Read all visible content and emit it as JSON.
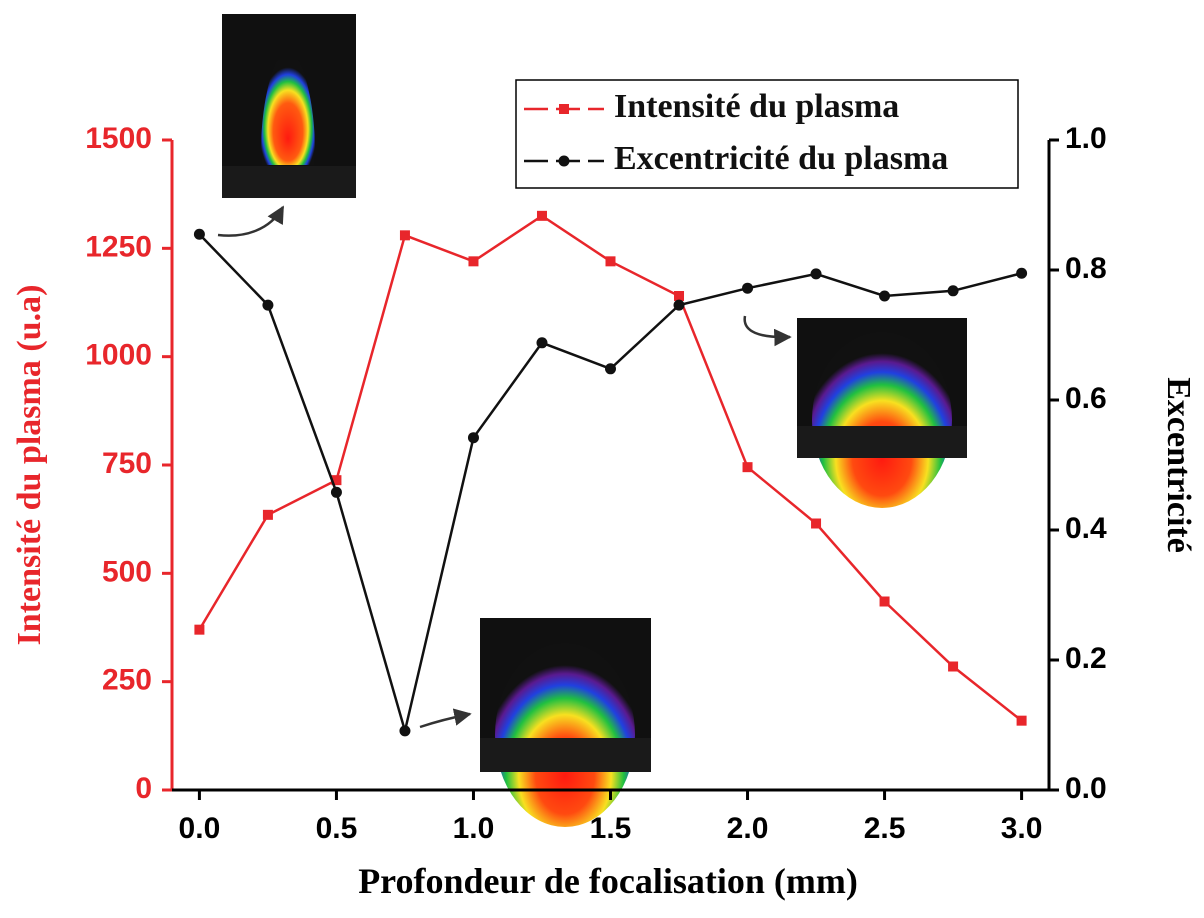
{
  "chart_data": {
    "type": "line",
    "x_label": "Profondeur de focalisation (mm)",
    "y_label": "Intensité du plasma (u.a)",
    "y2_label": "Excentricité",
    "x": [
      0,
      0.25,
      0.5,
      0.75,
      1.0,
      1.25,
      1.5,
      1.75,
      2.0,
      2.25,
      2.5,
      2.75,
      3.0
    ],
    "series": [
      {
        "name": "Intensité du plasma",
        "color": "#e8262b",
        "marker": "square",
        "values": [
          370,
          635,
          715,
          1280,
          1220,
          1325,
          1220,
          1140,
          745,
          615,
          435,
          285,
          160
        ]
      },
      {
        "name": "Excentricité du plasma",
        "color": "#111111",
        "marker": "circle",
        "axis": "y2",
        "values": [
          0.855,
          0.746,
          0.458,
          0.091,
          0.542,
          0.688,
          0.648,
          0.746,
          0.772,
          0.794,
          0.76,
          0.768,
          0.795
        ]
      }
    ],
    "xlim": [
      -0.1,
      3.1
    ],
    "xticks": [
      {
        "value": 0,
        "label": "0.0"
      },
      0.5,
      {
        "value": 1,
        "label": "1.0"
      },
      1.5,
      {
        "value": 2,
        "label": "2.0"
      },
      2.5,
      {
        "value": 3,
        "label": "3.0"
      }
    ],
    "ylim": [
      0,
      1500
    ],
    "yticks": [
      0,
      250,
      500,
      750,
      1000,
      1250,
      1500
    ],
    "y2lim": [
      0,
      1
    ],
    "y2ticks": [
      {
        "value": 0,
        "label": "0.0"
      },
      0.2,
      0.4,
      0.6,
      0.8,
      {
        "value": 1,
        "label": "1.0"
      }
    ],
    "y_color": "#e8262b",
    "legend": "upper right"
  }
}
